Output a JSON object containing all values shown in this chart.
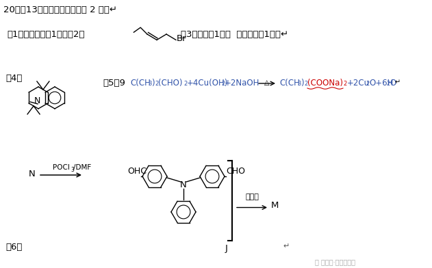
{
  "background_color": "#ffffff",
  "text_color": "#000000",
  "blue_color": "#3355aa",
  "red_color": "#cc0000",
  "fig_width": 6.31,
  "fig_height": 3.92,
  "dpi": 100,
  "title": "20．（13分，除标注外，每空 2 分）↵",
  "line2_left": "（1）碳碳双键（1分）（2）",
  "line2_right": "（3）苯胺（1分）  取代反应（1分）↵",
  "label4": "（4）",
  "label5_pre": "（5）9  ",
  "label6": "（6）",
  "quinazoline_label": "喹唑啉",
  "watermark": "公众号·文学与化学"
}
